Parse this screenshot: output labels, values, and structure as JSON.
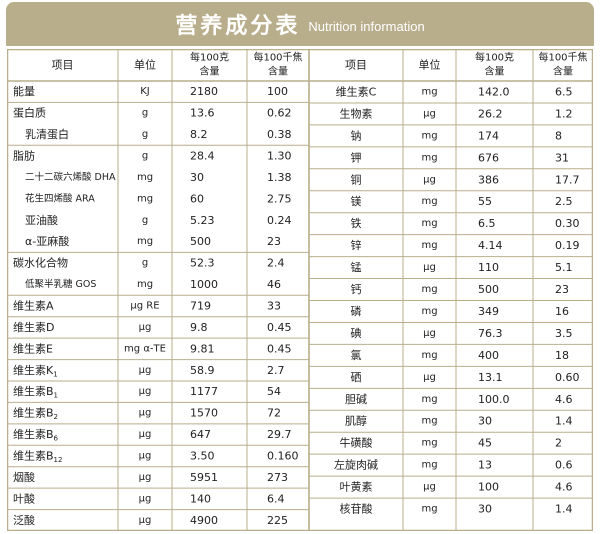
{
  "title": {
    "zh": "营养成分表",
    "en": "Nutrition information"
  },
  "headers": {
    "item": "项目",
    "unit": "单位",
    "per100g": "每100克\n含量",
    "per100kj": "每100千焦\n含量"
  },
  "left": [
    {
      "name": "能量",
      "unit": "KJ",
      "g": "2180",
      "kj": "100"
    },
    {
      "name": "蛋白质",
      "unit": "g",
      "g": "13.6",
      "kj": "0.62"
    },
    {
      "name": "乳清蛋白",
      "unit": "g",
      "g": "8.2",
      "kj": "0.38",
      "sub": true
    },
    {
      "name": "脂肪",
      "unit": "g",
      "g": "28.4",
      "kj": "1.30"
    },
    {
      "name": "二十二碳六烯酸 DHA",
      "unit": "mg",
      "g": "30",
      "kj": "1.38",
      "sub": true,
      "small": true
    },
    {
      "name": "花生四烯酸 ARA",
      "unit": "mg",
      "g": "60",
      "kj": "2.75",
      "sub": true,
      "small": true
    },
    {
      "name": "亚油酸",
      "unit": "g",
      "g": "5.23",
      "kj": "0.24",
      "sub": true
    },
    {
      "name": "α-亚麻酸",
      "unit": "mg",
      "g": "500",
      "kj": "23",
      "sub": true
    },
    {
      "name": "碳水化合物",
      "unit": "g",
      "g": "52.3",
      "kj": "2.4"
    },
    {
      "name": "低聚半乳糖 GOS",
      "unit": "mg",
      "g": "1000",
      "kj": "46",
      "sub": true,
      "small": true
    },
    {
      "name": "维生素A",
      "unit": "μg RE",
      "g": "719",
      "kj": "33"
    },
    {
      "name": "维生素D",
      "unit": "μg",
      "g": "9.8",
      "kj": "0.45"
    },
    {
      "name": "维生素E",
      "unit": "mg α-TE",
      "g": "9.81",
      "kj": "0.45"
    },
    {
      "name": "维生素K",
      "sup": "1",
      "unit": "μg",
      "g": "58.9",
      "kj": "2.7"
    },
    {
      "name": "维生素B",
      "sup": "1",
      "unit": "μg",
      "g": "1177",
      "kj": "54"
    },
    {
      "name": "维生素B",
      "sup": "2",
      "unit": "μg",
      "g": "1570",
      "kj": "72"
    },
    {
      "name": "维生素B",
      "sup": "6",
      "unit": "μg",
      "g": "647",
      "kj": "29.7"
    },
    {
      "name": "维生素B",
      "sup": "12",
      "unit": "μg",
      "g": "3.50",
      "kj": "0.160"
    },
    {
      "name": "烟酸",
      "unit": "μg",
      "g": "5951",
      "kj": "273"
    },
    {
      "name": "叶酸",
      "unit": "μg",
      "g": "140",
      "kj": "6.4"
    },
    {
      "name": "泛酸",
      "unit": "μg",
      "g": "4900",
      "kj": "225"
    }
  ],
  "right": [
    {
      "name": "维生素C",
      "unit": "mg",
      "g": "142.0",
      "kj": "6.5"
    },
    {
      "name": "生物素",
      "unit": "μg",
      "g": "26.2",
      "kj": "1.2"
    },
    {
      "name": "钠",
      "unit": "mg",
      "g": "174",
      "kj": "8"
    },
    {
      "name": "钾",
      "unit": "mg",
      "g": "676",
      "kj": "31"
    },
    {
      "name": "铜",
      "unit": "μg",
      "g": "386",
      "kj": "17.7"
    },
    {
      "name": "镁",
      "unit": "mg",
      "g": "55",
      "kj": "2.5"
    },
    {
      "name": "铁",
      "unit": "mg",
      "g": "6.5",
      "kj": "0.30"
    },
    {
      "name": "锌",
      "unit": "mg",
      "g": "4.14",
      "kj": "0.19"
    },
    {
      "name": "锰",
      "unit": "μg",
      "g": "110",
      "kj": "5.1"
    },
    {
      "name": "钙",
      "unit": "mg",
      "g": "500",
      "kj": "23"
    },
    {
      "name": "磷",
      "unit": "mg",
      "g": "349",
      "kj": "16"
    },
    {
      "name": "碘",
      "unit": "μg",
      "g": "76.3",
      "kj": "3.5"
    },
    {
      "name": "氯",
      "unit": "mg",
      "g": "400",
      "kj": "18"
    },
    {
      "name": "硒",
      "unit": "μg",
      "g": "13.1",
      "kj": "0.60"
    },
    {
      "name": "胆碱",
      "unit": "mg",
      "g": "100.0",
      "kj": "4.6"
    },
    {
      "name": "肌醇",
      "unit": "mg",
      "g": "30",
      "kj": "1.4"
    },
    {
      "name": "牛磺酸",
      "unit": "mg",
      "g": "45",
      "kj": "2"
    },
    {
      "name": "左旋肉碱",
      "unit": "mg",
      "g": "13",
      "kj": "0.6"
    },
    {
      "name": "叶黄素",
      "unit": "μg",
      "g": "100",
      "kj": "4.6"
    },
    {
      "name": "核苷酸",
      "unit": "mg",
      "g": "30",
      "kj": "1.4"
    }
  ],
  "colors": {
    "banner": "#b9ae8b",
    "border": "#b9ae8b",
    "text": "#222222"
  }
}
